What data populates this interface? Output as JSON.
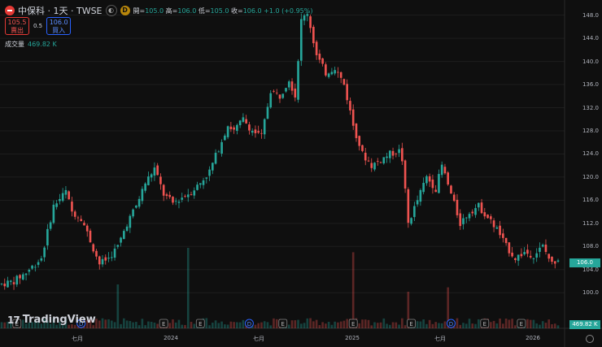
{
  "header": {
    "symbol": "中保科 · 1天 · TWSE",
    "d_badge": "D",
    "ohlc_open_label": "開=",
    "ohlc_open": "105.0",
    "ohlc_high_label": "高=",
    "ohlc_high": "106.0",
    "ohlc_low_label": "低=",
    "ohlc_low": "105.0",
    "ohlc_close_label": "收=",
    "ohlc_close": "106.0",
    "ohlc_change": "+1.0 (+0.95%)"
  },
  "bidask": {
    "sell_price": "105.5",
    "sell_label": "賣出",
    "spread": "0.5",
    "buy_price": "106.0",
    "buy_label": "買入"
  },
  "volume": {
    "label": "成交量",
    "value": "469.82 K"
  },
  "price_tag": "106.0",
  "volume_tag": "469.82 K",
  "brand": "TradingView",
  "colors": {
    "up": "#26a69a",
    "down": "#ef5350",
    "background": "#0f0f0f"
  },
  "chart_data": {
    "type": "candlestick",
    "title": "中保科 · 1天 · TWSE",
    "y_ticks": [
      "148.0",
      "144.0",
      "140.0",
      "136.0",
      "132.0",
      "128.0",
      "124.0",
      "120.0",
      "116.0",
      "112.0",
      "108.0",
      "104.0",
      "100.0"
    ],
    "x_ticks": [
      "七月",
      "2024",
      "七月",
      "2025",
      "七月",
      "2026"
    ],
    "ylim": [
      97.5,
      149.5
    ],
    "grid": true,
    "price_path": [
      [
        0,
        101.5
      ],
      [
        4,
        102
      ],
      [
        8,
        103.5
      ],
      [
        13,
        106
      ],
      [
        17,
        115
      ],
      [
        21,
        117.5
      ],
      [
        23,
        114
      ],
      [
        26,
        113
      ],
      [
        29,
        109
      ],
      [
        32,
        105
      ],
      [
        35,
        106
      ],
      [
        38,
        108
      ],
      [
        41,
        112
      ],
      [
        44,
        115
      ],
      [
        47,
        119
      ],
      [
        50,
        121.5
      ],
      [
        53,
        117
      ],
      [
        56,
        115.5
      ],
      [
        59,
        116.5
      ],
      [
        62,
        117.5
      ],
      [
        65,
        119
      ],
      [
        68,
        121
      ],
      [
        71,
        125
      ],
      [
        74,
        129
      ],
      [
        76,
        128
      ],
      [
        79,
        130
      ],
      [
        82,
        128
      ],
      [
        85,
        127
      ],
      [
        88,
        135
      ],
      [
        91,
        134
      ],
      [
        94,
        137
      ],
      [
        96,
        134
      ],
      [
        98,
        147
      ],
      [
        100,
        148.5
      ],
      [
        103,
        141
      ],
      [
        106,
        138
      ],
      [
        109,
        139
      ],
      [
        112,
        136
      ],
      [
        115,
        129
      ],
      [
        118,
        124
      ],
      [
        121,
        122
      ],
      [
        124,
        123
      ],
      [
        127,
        124
      ],
      [
        130,
        124.5
      ],
      [
        131,
        123
      ],
      [
        133,
        112
      ],
      [
        136,
        116
      ],
      [
        139,
        120
      ],
      [
        142,
        118
      ],
      [
        144,
        122
      ],
      [
        147,
        117
      ],
      [
        150,
        112
      ],
      [
        153,
        114
      ],
      [
        156,
        115
      ],
      [
        159,
        113
      ],
      [
        162,
        111
      ],
      [
        165,
        108
      ],
      [
        168,
        106
      ],
      [
        171,
        107
      ],
      [
        174,
        106.5
      ],
      [
        177,
        108
      ],
      [
        180,
        105
      ],
      [
        182,
        106
      ]
    ],
    "volume_spikes": [
      {
        "day": 38,
        "rel": 0.3
      },
      {
        "day": 61,
        "rel": 0.55
      },
      {
        "day": 115,
        "rel": 0.52
      },
      {
        "day": 133,
        "rel": 0.25
      },
      {
        "day": 146,
        "rel": 0.28
      }
    ],
    "event_markers": [
      {
        "day": 5,
        "label": "E"
      },
      {
        "day": 26,
        "label": "D"
      },
      {
        "day": 53,
        "label": "E"
      },
      {
        "day": 65,
        "label": "E"
      },
      {
        "day": 81,
        "label": "D"
      },
      {
        "day": 92,
        "label": "E"
      },
      {
        "day": 115,
        "label": "E"
      },
      {
        "day": 134,
        "label": "E"
      },
      {
        "day": 147,
        "label": "D"
      },
      {
        "day": 158,
        "label": "E"
      },
      {
        "day": 170,
        "label": "E"
      }
    ]
  }
}
